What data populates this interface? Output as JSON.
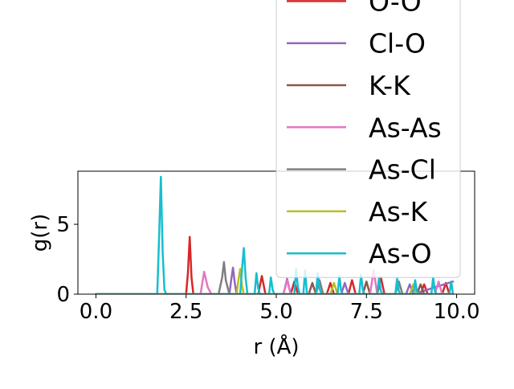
{
  "chart_data": {
    "type": "line",
    "title": "",
    "xlabel": "r (Å)",
    "ylabel": "g(r)",
    "xlim": [
      -0.5,
      10.5
    ],
    "ylim": [
      0,
      8.8
    ],
    "x_ticks": [
      "0.0",
      "2.5",
      "5.0",
      "7.5",
      "10.0"
    ],
    "y_ticks": [
      "0",
      "5"
    ],
    "grid": false,
    "legend_position": "upper right",
    "series": [
      {
        "name": "O-O",
        "color": "#d62728",
        "x": [
          0,
          2.5,
          2.55,
          2.6,
          2.65,
          2.7,
          2.75,
          4.5,
          4.6,
          4.7,
          5.4,
          5.5,
          5.6,
          6.4,
          6.5,
          6.6,
          7.0,
          7.1,
          7.2,
          7.8,
          7.9,
          8.0,
          9.0,
          9.1,
          9.2,
          9.6,
          9.7,
          9.8,
          9.9
        ],
        "y": [
          0,
          0,
          1.5,
          4.1,
          1.2,
          0,
          0,
          0,
          1.3,
          0,
          0,
          0.9,
          0,
          0,
          0.8,
          0,
          0,
          1.0,
          0,
          0,
          1.2,
          0,
          0,
          0.7,
          0,
          0,
          0.8,
          0,
          0
        ]
      },
      {
        "name": "Cl-O",
        "color": "#9467bd",
        "x": [
          0,
          3.7,
          3.75,
          3.8,
          3.85,
          3.9,
          5.2,
          5.3,
          5.4,
          6.8,
          6.9,
          7.0,
          8.6,
          8.7,
          8.8,
          9.9
        ],
        "y": [
          0,
          0,
          1.0,
          1.9,
          0.8,
          0,
          0,
          1.1,
          0,
          0,
          0.8,
          0,
          0,
          0.7,
          0,
          0.9
        ]
      },
      {
        "name": "K-K",
        "color": "#8c564b",
        "x": [
          0,
          5.9,
          6.0,
          6.1,
          7.4,
          7.5,
          7.6,
          8.9,
          9.0,
          9.1,
          9.9
        ],
        "y": [
          0,
          0,
          0.8,
          0,
          0,
          0.9,
          0,
          0,
          0.7,
          0,
          0
        ]
      },
      {
        "name": "As-As",
        "color": "#e377c2",
        "x": [
          0,
          2.9,
          3.0,
          3.1,
          3.2,
          5.2,
          5.3,
          5.4,
          7.6,
          7.7,
          7.8,
          9.4,
          9.5,
          9.6,
          9.9
        ],
        "y": [
          0,
          0,
          1.6,
          0.5,
          0,
          0,
          1.0,
          0,
          0,
          1.7,
          0,
          0,
          0.9,
          0,
          0
        ]
      },
      {
        "name": "As-Cl",
        "color": "#7f7f7f",
        "x": [
          0,
          3.4,
          3.5,
          3.55,
          3.6,
          3.7,
          6.1,
          6.2,
          6.3,
          8.3,
          8.4,
          8.5,
          9.9
        ],
        "y": [
          0,
          0,
          1.2,
          2.3,
          1.0,
          0,
          0,
          1.0,
          0,
          0,
          0.9,
          0,
          0
        ]
      },
      {
        "name": "As-K",
        "color": "#bcbd22",
        "x": [
          0,
          3.9,
          3.95,
          4.0,
          4.05,
          4.1,
          6.5,
          6.6,
          6.7,
          8.7,
          8.8,
          8.9,
          9.9
        ],
        "y": [
          0,
          0,
          1.0,
          1.8,
          0.6,
          0,
          0,
          0.8,
          0,
          0,
          0.7,
          0,
          0
        ]
      },
      {
        "name": "As-O",
        "color": "#17becf",
        "x": [
          0,
          1.7,
          1.75,
          1.8,
          1.85,
          1.9,
          1.95,
          4.0,
          4.05,
          4.1,
          4.15,
          4.2,
          4.4,
          4.45,
          4.5,
          4.55,
          4.8,
          4.85,
          4.9,
          4.95,
          5.5,
          5.55,
          5.6,
          5.65,
          5.75,
          5.8,
          5.85,
          6.1,
          6.15,
          6.2,
          6.25,
          6.7,
          6.75,
          6.8,
          6.85,
          7.3,
          7.35,
          7.4,
          7.45,
          7.8,
          7.85,
          7.9,
          7.95,
          8.3,
          8.35,
          8.4,
          8.45,
          8.8,
          8.85,
          8.9,
          8.95,
          9.3,
          9.35,
          9.4,
          9.45,
          9.8,
          9.85,
          9.9
        ],
        "y": [
          0,
          0,
          4.0,
          8.4,
          3.0,
          0.3,
          0,
          0,
          1.8,
          3.3,
          1.2,
          0,
          0,
          1.5,
          0.4,
          0,
          0,
          1.2,
          0.3,
          0,
          0,
          1.8,
          0.5,
          0,
          0,
          1.7,
          0,
          0,
          1.5,
          0.4,
          0,
          0,
          1.3,
          0.2,
          0,
          0,
          1.4,
          0.3,
          0,
          0,
          1.2,
          0.2,
          0,
          0,
          1.1,
          0.2,
          0,
          0,
          1.0,
          0.2,
          0,
          0,
          1.2,
          0.2,
          0,
          0,
          0.9,
          0
        ]
      }
    ]
  }
}
